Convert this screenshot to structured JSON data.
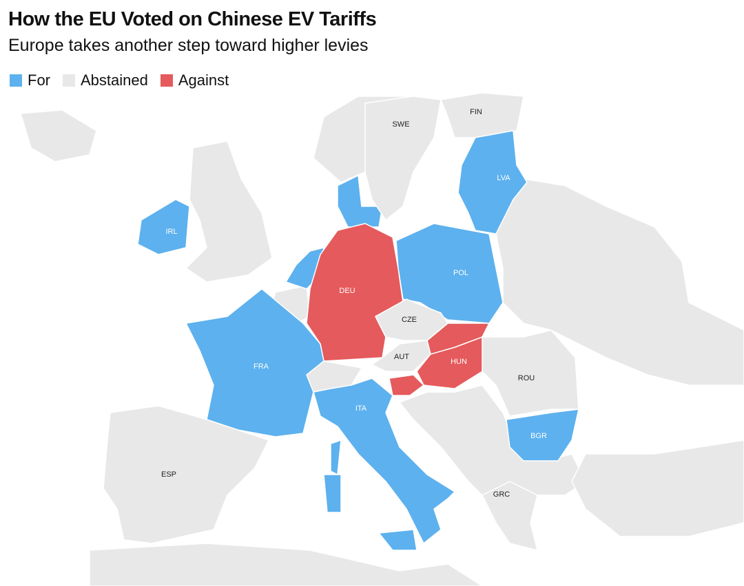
{
  "header": {
    "title": "How the EU Voted on Chinese EV Tariffs",
    "subtitle": "Europe takes another step toward higher levies"
  },
  "legend": [
    {
      "label": "For",
      "color": "#5db1ee"
    },
    {
      "label": "Abstained",
      "color": "#e8e8e8"
    },
    {
      "label": "Against",
      "color": "#e55a5c"
    }
  ],
  "countries": [
    {
      "label": "SWE",
      "vote": "Abstained"
    },
    {
      "label": "FIN",
      "vote": "Abstained"
    },
    {
      "label": "LVA",
      "vote": "For"
    },
    {
      "label": "IRL",
      "vote": "For"
    },
    {
      "label": "POL",
      "vote": "For"
    },
    {
      "label": "DEU",
      "vote": "Against"
    },
    {
      "label": "CZE",
      "vote": "Abstained"
    },
    {
      "label": "AUT",
      "vote": "Abstained"
    },
    {
      "label": "HUN",
      "vote": "Against"
    },
    {
      "label": "FRA",
      "vote": "For"
    },
    {
      "label": "ROU",
      "vote": "Abstained"
    },
    {
      "label": "ITA",
      "vote": "For"
    },
    {
      "label": "BGR",
      "vote": "For"
    },
    {
      "label": "ESP",
      "vote": "Abstained"
    },
    {
      "label": "GRC",
      "vote": "Abstained"
    }
  ]
}
